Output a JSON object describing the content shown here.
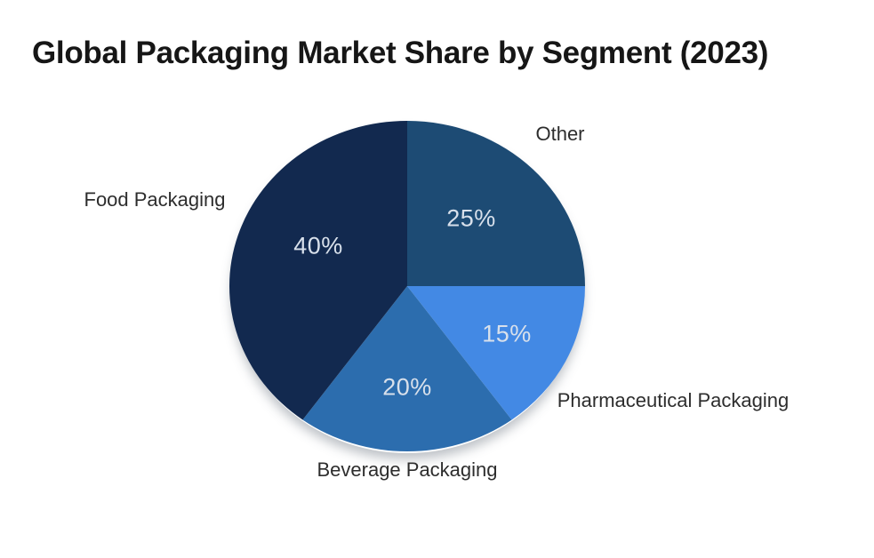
{
  "chart_data": {
    "type": "pie",
    "title": "Global Packaging Market Share by Segment (2023)",
    "start_angle_deg": 0,
    "direction": "clockwise",
    "background_color": "#ffffff",
    "title_color": "#161616",
    "outside_label_color": "#2d2d2d",
    "value_label_color": "#d8e0eb",
    "segments": [
      {
        "id": "other",
        "label": "Other",
        "value": 25,
        "pct_label": "25%",
        "color": "#1d4b74"
      },
      {
        "id": "pharmaceutical-packaging",
        "label": "Pharmaceutical Packaging",
        "value": 15,
        "pct_label": "15%",
        "color": "#4389e4"
      },
      {
        "id": "beverage-packaging",
        "label": "Beverage Packaging",
        "value": 20,
        "pct_label": "20%",
        "color": "#2c6dae"
      },
      {
        "id": "food-packaging",
        "label": "Food Packaging",
        "value": 40,
        "pct_label": "40%",
        "color": "#12294f"
      }
    ]
  }
}
